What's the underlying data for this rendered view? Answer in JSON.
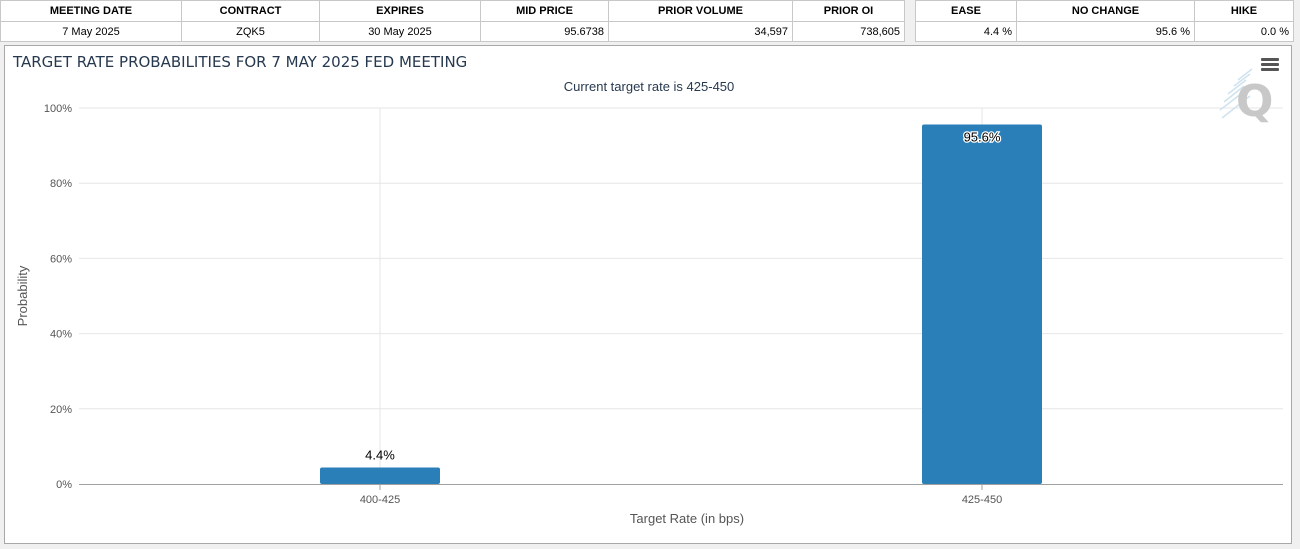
{
  "info_table": {
    "headers": [
      "MEETING DATE",
      "CONTRACT",
      "EXPIRES",
      "MID PRICE",
      "PRIOR VOLUME",
      "PRIOR OI"
    ],
    "values": [
      "7 May 2025",
      "ZQK5",
      "30 May 2025",
      "95.6738",
      "34,597",
      "738,605"
    ]
  },
  "prob_table": {
    "headers": [
      "EASE",
      "NO CHANGE",
      "HIKE"
    ],
    "values": [
      "4.4 %",
      "95.6 %",
      "0.0 %"
    ]
  },
  "chart_data": {
    "type": "bar",
    "title": "TARGET RATE PROBABILITIES FOR 7 MAY 2025 FED MEETING",
    "subtitle": "Current target rate is 425-450",
    "xlabel": "Target Rate (in bps)",
    "ylabel": "Probability",
    "categories": [
      "400-425",
      "425-450"
    ],
    "values": [
      4.4,
      95.6
    ],
    "data_labels": [
      "4.4%",
      "95.6%"
    ],
    "ylim": [
      0,
      100
    ],
    "yticks": [
      "0%",
      "20%",
      "40%",
      "60%",
      "80%",
      "100%"
    ],
    "grid": true,
    "bar_color": "#2a7fb8"
  },
  "colors": {
    "title": "#27394f",
    "bar": "#2a7fb8",
    "grid": "#e6e6e6",
    "axis_text": "#555555"
  },
  "icons": {
    "menu": "hamburger-menu-icon",
    "watermark": "q-logo-watermark"
  }
}
